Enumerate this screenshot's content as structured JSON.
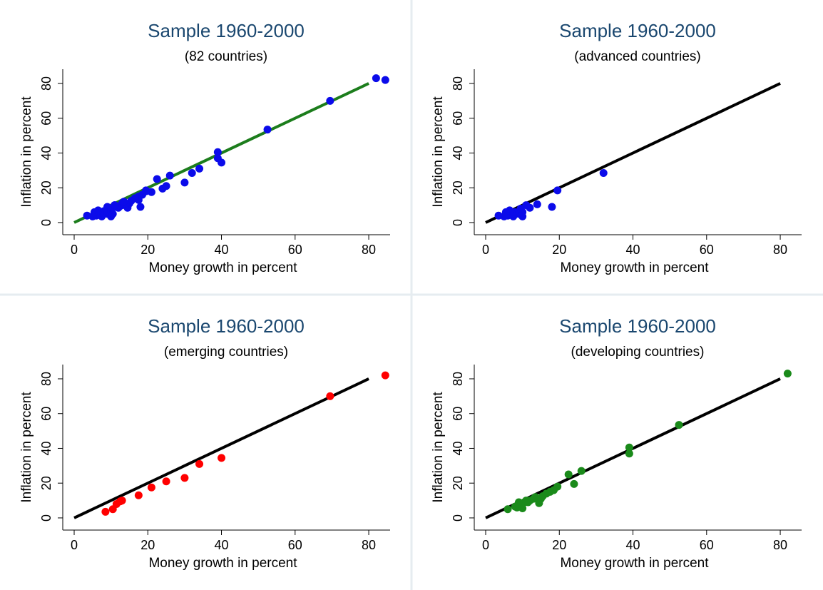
{
  "chart_data": [
    {
      "type": "scatter",
      "title": "Sample 1960-2000",
      "subtitle": "(82 countries)",
      "x_label": "Money growth in percent",
      "y_label": "Inflation in percent",
      "xlim": [
        -3.1,
        85.8
      ],
      "ylim": [
        -7,
        88.2
      ],
      "xticks": [
        0,
        20,
        40,
        60,
        80
      ],
      "yticks": [
        0,
        20,
        40,
        60,
        80
      ],
      "color": "#0b0bea",
      "x": [
        82,
        84.5,
        69.5,
        52.5,
        39,
        39,
        40,
        34,
        32,
        30,
        26,
        22.5,
        24,
        25,
        21,
        19.5,
        19.5,
        18.5,
        18,
        17.5,
        17.5,
        16.5,
        15.5,
        15,
        14.5,
        14,
        13,
        13,
        12.5,
        12,
        11.5,
        11,
        10.5,
        10,
        10,
        9.5,
        9,
        9,
        8.5,
        8,
        7.5,
        7,
        6.5,
        6,
        6,
        5.5,
        5,
        3.5,
        11,
        13.5
      ],
      "values": [
        83,
        82,
        70,
        53.5,
        40.5,
        37,
        34.5,
        31,
        28.5,
        23,
        27,
        25,
        19.5,
        21,
        17.5,
        18.5,
        18,
        16,
        9,
        15,
        13,
        14,
        12.5,
        11,
        8.5,
        10.5,
        11,
        10,
        9.5,
        8.5,
        9,
        10,
        5,
        8,
        3.5,
        7,
        9,
        5,
        6,
        6.5,
        3.5,
        5.5,
        7,
        4,
        6,
        6,
        3.5,
        4,
        10,
        12
      ],
      "line": {
        "x": [
          0,
          80
        ],
        "values": [
          0,
          80
        ],
        "color": "#1c7d1c"
      }
    },
    {
      "type": "scatter",
      "title": "Sample 1960-2000",
      "subtitle": "(advanced countries)",
      "x_label": "Money growth in percent",
      "y_label": "Inflation in percent",
      "xlim": [
        -3.1,
        85.8
      ],
      "ylim": [
        -7,
        88.2
      ],
      "xticks": [
        0,
        20,
        40,
        60,
        80
      ],
      "yticks": [
        0,
        20,
        40,
        60,
        80
      ],
      "color": "#0b0bea",
      "x": [
        32,
        19.5,
        18,
        14,
        12,
        11,
        10,
        10,
        9,
        8,
        7,
        6.5,
        6,
        5.5,
        5,
        3.5,
        9.5,
        7.5
      ],
      "values": [
        28.5,
        18.5,
        9,
        10.5,
        8.5,
        10,
        6,
        3.5,
        5,
        6,
        5.5,
        7,
        4,
        6,
        3.5,
        4,
        8,
        3.5
      ],
      "line": {
        "x": [
          0,
          80
        ],
        "values": [
          0,
          80
        ],
        "color": "#000000"
      }
    },
    {
      "type": "scatter",
      "title": "Sample 1960-2000",
      "subtitle": "(emerging countries)",
      "x_label": "Money growth in percent",
      "y_label": "Inflation in percent",
      "xlim": [
        -3.1,
        85.8
      ],
      "ylim": [
        -7,
        88.2
      ],
      "xticks": [
        0,
        20,
        40,
        60,
        80
      ],
      "yticks": [
        0,
        20,
        40,
        60,
        80
      ],
      "color": "#ff0000",
      "x": [
        84.5,
        69.5,
        40,
        34,
        30,
        25,
        21,
        17.5,
        13,
        12.5,
        11.5,
        10.5,
        8.5
      ],
      "values": [
        82,
        70,
        34.5,
        31,
        23,
        21,
        17.5,
        13,
        10,
        9.5,
        8,
        5,
        3.5
      ],
      "line": {
        "x": [
          0,
          80
        ],
        "values": [
          0,
          80
        ],
        "color": "#000000"
      }
    },
    {
      "type": "scatter",
      "title": "Sample 1960-2000",
      "subtitle": "(developing countries)",
      "x_label": "Money growth in percent",
      "y_label": "Inflation in percent",
      "xlim": [
        -3.1,
        85.8
      ],
      "ylim": [
        -7,
        88.2
      ],
      "xticks": [
        0,
        20,
        40,
        60,
        80
      ],
      "yticks": [
        0,
        20,
        40,
        60,
        80
      ],
      "color": "#1a8a1a",
      "x": [
        82,
        52.5,
        39,
        39,
        26,
        22.5,
        24,
        19.5,
        18.5,
        17.5,
        16.5,
        15.5,
        15,
        14.5,
        13,
        12,
        11.5,
        10.5,
        10,
        10,
        9.5,
        9,
        8.5,
        8,
        6,
        11,
        13.5
      ],
      "values": [
        83,
        53.5,
        40.5,
        37,
        27,
        25,
        19.5,
        18,
        16,
        15,
        14,
        12.5,
        11,
        8.5,
        11,
        10,
        9,
        9,
        8,
        5.5,
        7,
        9,
        6,
        6.5,
        5,
        10,
        12
      ],
      "line": {
        "x": [
          0,
          80
        ],
        "values": [
          0,
          80
        ],
        "color": "#000000"
      }
    }
  ]
}
